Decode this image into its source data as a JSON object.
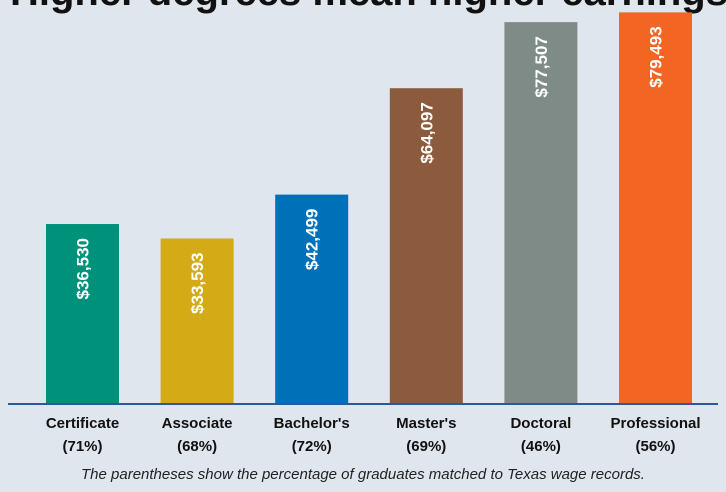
{
  "chart_data": {
    "type": "bar",
    "title": "Higher degrees mean higher earnings",
    "categories": [
      "Certificate",
      "Associate",
      "Bachelor's",
      "Master's",
      "Doctoral",
      "Professional"
    ],
    "match_percent_labels": [
      "(71%)",
      "(68%)",
      "(72%)",
      "(69%)",
      "(46%)",
      "(56%)"
    ],
    "values": [
      36530,
      33593,
      42499,
      64097,
      77507,
      79493
    ],
    "value_labels": [
      "$36,530",
      "$33,593",
      "$42,499",
      "$64,097",
      "$77,507",
      "$79,493"
    ],
    "colors": [
      "#00917b",
      "#d4aa17",
      "#0070b8",
      "#8c5a3c",
      "#7f8b86",
      "#f26522"
    ],
    "ylim": [
      0,
      82000
    ],
    "xlabel": "",
    "ylabel": "",
    "grid": false,
    "footnote": "The parentheses show the percentage of graduates matched to Texas wage records."
  }
}
